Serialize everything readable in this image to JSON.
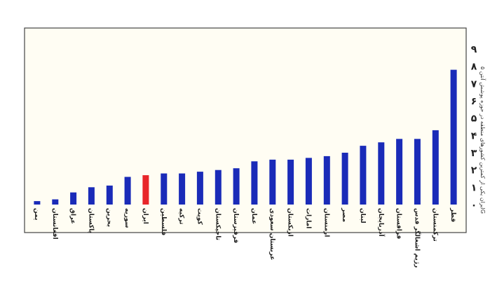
{
  "chart_data": {
    "type": "bar",
    "categories": [
      "یمن",
      "افغانستان",
      "عراق",
      "پاکستان",
      "بحرین",
      "سوریه",
      "ایران",
      "فلسطین",
      "ترکیه",
      "کویت",
      "تاجیکستان",
      "قرقیزستان",
      "عمان",
      "عربستان سعودی",
      "ازبکستان",
      "امارات",
      "ارمنستان",
      "مصر",
      "لبنان",
      "آذربایجان",
      "قزاقستان",
      "رژیم اشغالگر قدس",
      "ترکمنستان",
      "قطر"
    ],
    "values": [
      0.2,
      0.3,
      0.7,
      1.0,
      1.1,
      1.6,
      1.7,
      1.8,
      1.8,
      1.9,
      2.0,
      2.1,
      2.5,
      2.6,
      2.6,
      2.7,
      2.8,
      3.0,
      3.4,
      3.6,
      3.8,
      3.8,
      4.3,
      7.8
    ],
    "highlight_index": 6,
    "colors": {
      "bar": "#1a2bb8",
      "highlight": "#e8262a"
    },
    "yticks": [
      "۰",
      "۱",
      "۲",
      "۳",
      "۴",
      "۵",
      "۶",
      "۷",
      "۸",
      "۹"
    ],
    "ylim": [
      0,
      9
    ],
    "grid": false,
    "note": "ایران یکی از کمترین کشورهای منطقه در حوزه پوشش آنتن ۵G"
  }
}
